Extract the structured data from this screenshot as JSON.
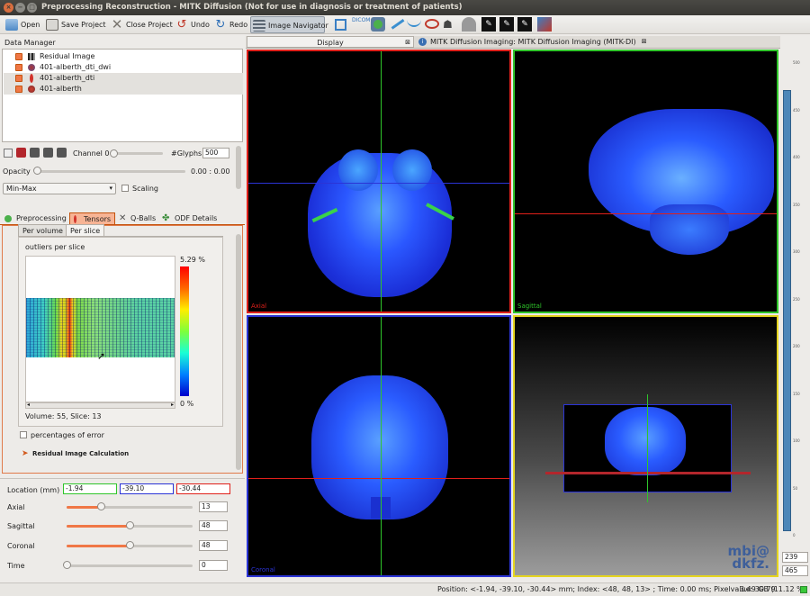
{
  "window": {
    "title": "Preprocessing Reconstruction - MITK Diffusion (Not for use in diagnosis or treatment of patients)"
  },
  "toolbar": {
    "open": "Open",
    "save": "Save Project",
    "close": "Close Project",
    "undo": "Undo",
    "redo": "Redo",
    "navigator": "Image Navigator"
  },
  "data_manager": {
    "title": "Data Manager",
    "items": [
      {
        "label": "Residual Image"
      },
      {
        "label": "401-alberth_dti_dwi"
      },
      {
        "label": "401-alberth_dti"
      },
      {
        "label": "401-alberth"
      }
    ]
  },
  "props": {
    "channel": "Channel 0",
    "glyphs_label": "#Glyphs",
    "glyphs_value": "500",
    "opacity_label": "Opacity",
    "opacity_range": "0.00 : 0.00",
    "minmax": "Min-Max",
    "scaling": "Scaling"
  },
  "plugin_tabs": [
    "Preprocessing",
    "Tensors",
    "Q-Balls",
    "ODF Details"
  ],
  "residual": {
    "subtabs": [
      "Per volume",
      "Per slice"
    ],
    "heading": "outliers per slice",
    "scale_max": "5.29 %",
    "scale_min": "0 %",
    "info": "Volume: 55, Slice: 13",
    "percentages": "percentages of error",
    "calc": "Residual Image Calculation"
  },
  "navigator": {
    "location_label": "Location (mm)",
    "loc_x": "-1.94",
    "loc_y": "-39.10",
    "loc_z": "-30.44",
    "axial_label": "Axial",
    "axial": "13",
    "axial_level": 0.27,
    "sagittal_label": "Sagittal",
    "sagittal": "48",
    "sagittal_level": 0.5,
    "coronal_label": "Coronal",
    "coronal": "48",
    "coronal_level": 0.5,
    "time_label": "Time",
    "time": "0",
    "time_level": 0.0
  },
  "display_tabs": {
    "display": "Display",
    "mitk": "MITK Diffusion Imaging: MITK Diffusion Imaging (MITK-DI)"
  },
  "views": {
    "axial": "Axial",
    "sagittal": "Sagittal",
    "coronal": "Coronal"
  },
  "logo": {
    "line1": "mbi@",
    "line2": "dkfz."
  },
  "level_window": {
    "top": "239",
    "bottom": "465"
  },
  "ruler_labels": [
    "500",
    "450",
    "400",
    "350",
    "300",
    "250",
    "200",
    "150",
    "100",
    "50",
    "0"
  ],
  "status": {
    "position": "Position: <-1.94, -39.10, -30.44> mm; Index: <48, 48, 13> ; Time: 0.00 ms; Pixelvalue: 30.79",
    "memory": "3.49 GB (11.12 %)"
  },
  "colors": {
    "accent": "#f07746",
    "axial": "#e0201a",
    "sagittal": "#2fc52a",
    "coronal": "#2b34d6",
    "threed": "#e5d51f"
  }
}
